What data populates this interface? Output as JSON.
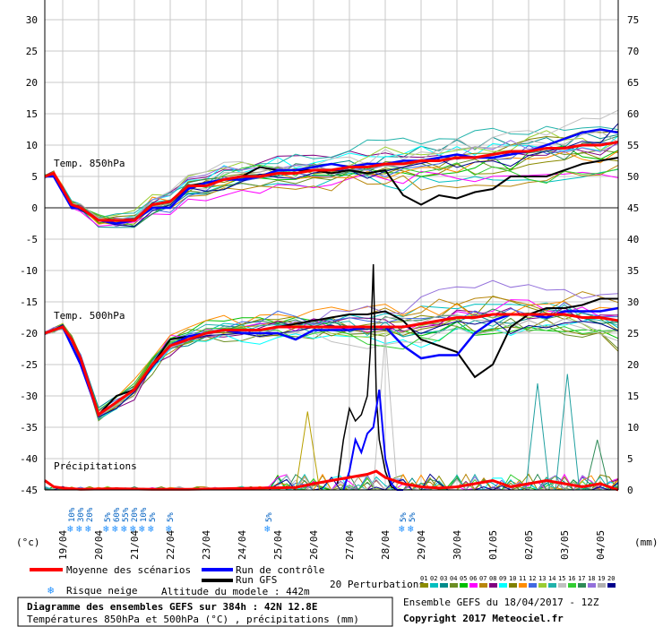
{
  "header": {
    "title_line1": "Diagramme des ensembles GEFS sur 384h : 42N 12.8E",
    "title_line2": "Températures 850hPa et 500hPa (°C) , précipitations (mm)",
    "ensemble_label": "Ensemble GEFS du 18/04/2017 - 12Z",
    "copyright": "Copyright 2017 Meteociel.fr",
    "altitude": "Altitude du modele : 442m"
  },
  "labels": {
    "t850": "Temp. 850hPa",
    "t500": "Temp. 500hPa",
    "precip": "Précipitations",
    "left_unit": "(°c)",
    "right_unit": "(mm)"
  },
  "legend": {
    "mean": "Moyenne des scénarios",
    "control": "Run de contrôle",
    "gfs": "Run GFS",
    "perturb": "20 Perturbations",
    "snow": "Risque neige",
    "perturb_nums": [
      "01",
      "02",
      "03",
      "04",
      "05",
      "06",
      "07",
      "08",
      "09",
      "10",
      "11",
      "12",
      "13",
      "14",
      "15",
      "16",
      "17",
      "18",
      "19",
      "20"
    ],
    "perturb_colors": [
      "#8b8b00",
      "#00bfbf",
      "#008b8b",
      "#6b8e23",
      "#00c000",
      "#ff00ff",
      "#b8860b",
      "#800080",
      "#00ffff",
      "#808000",
      "#ff8c00",
      "#4169e1",
      "#9acd32",
      "#20b2aa",
      "#c0c0c0",
      "#32cd32",
      "#2e8b57",
      "#9370db",
      "#b0b0b0",
      "#00008b"
    ]
  },
  "colors": {
    "mean": "#ff0000",
    "control": "#0000ff",
    "gfs": "#000000",
    "grid": "#c8c8c8",
    "snow": "#2090ff"
  },
  "chart_data": {
    "type": "line",
    "x_dates": [
      "19/04",
      "20/04",
      "21/04",
      "22/04",
      "23/04",
      "24/04",
      "25/04",
      "26/04",
      "27/04",
      "28/04",
      "29/04",
      "30/04",
      "01/05",
      "02/05",
      "03/05",
      "04/05"
    ],
    "x_hours_start": 0,
    "x_hours_end": 384,
    "y_left_ticks": [
      30,
      25,
      20,
      15,
      10,
      5,
      0,
      -5,
      -10,
      -15,
      -20,
      -25,
      -30,
      -35,
      -40,
      -45
    ],
    "y_right_ticks": [
      75,
      70,
      65,
      60,
      55,
      50,
      45,
      40,
      35,
      30,
      25,
      20,
      15,
      10,
      5,
      0
    ],
    "snow_risk": [
      {
        "date_hour": 18,
        "pct": "10%"
      },
      {
        "date_hour": 24,
        "pct": "30%"
      },
      {
        "date_hour": 30,
        "pct": "20%"
      },
      {
        "date_hour": 42,
        "pct": "5%"
      },
      {
        "date_hour": 48,
        "pct": "60%"
      },
      {
        "date_hour": 54,
        "pct": "55%"
      },
      {
        "date_hour": 60,
        "pct": "20%"
      },
      {
        "date_hour": 66,
        "pct": "10%"
      },
      {
        "date_hour": 72,
        "pct": "5%"
      },
      {
        "date_hour": 84,
        "pct": "5%"
      },
      {
        "date_hour": 150,
        "pct": "5%"
      },
      {
        "date_hour": 240,
        "pct": "5%"
      },
      {
        "date_hour": 246,
        "pct": "5%"
      }
    ],
    "t850": {
      "hours": [
        0,
        6,
        12,
        18,
        24,
        36,
        48,
        60,
        72,
        84,
        96,
        108,
        120,
        132,
        144,
        156,
        168,
        180,
        192,
        204,
        216,
        228,
        240,
        252,
        264,
        276,
        288,
        300,
        312,
        324,
        336,
        348,
        360,
        372,
        384
      ],
      "mean": [
        5,
        5.5,
        3,
        0.5,
        0,
        -2,
        -2,
        -2,
        0.5,
        1,
        3.5,
        3.5,
        4.5,
        5,
        5,
        5.5,
        5.5,
        6,
        6,
        6.5,
        6.5,
        7,
        7,
        7.5,
        7.5,
        8,
        8,
        8.5,
        9,
        9,
        9.5,
        9.5,
        10,
        10,
        10.5
      ],
      "control": [
        5,
        5,
        2.5,
        0,
        0,
        -2,
        -2.5,
        -2,
        0,
        0,
        3,
        4,
        4.5,
        4.5,
        5,
        6,
        6,
        6.5,
        7,
        6.5,
        7,
        7,
        7.5,
        7.5,
        8,
        8.5,
        8,
        8,
        8.5,
        9,
        10,
        11,
        12,
        12.5,
        12
      ],
      "gfs": [
        5,
        5.5,
        3,
        0,
        0,
        -2,
        -2,
        -2,
        0.5,
        1,
        3.5,
        4,
        4.5,
        5,
        6.5,
        6,
        6,
        6,
        5.5,
        6,
        5.5,
        6,
        2,
        0.5,
        2,
        1.5,
        2.5,
        3,
        5,
        5,
        5,
        6,
        7,
        7.5,
        8
      ]
    },
    "t500": {
      "hours": [
        0,
        6,
        12,
        18,
        24,
        36,
        48,
        60,
        72,
        84,
        96,
        108,
        120,
        132,
        144,
        156,
        168,
        180,
        192,
        204,
        216,
        228,
        240,
        252,
        264,
        276,
        288,
        300,
        312,
        324,
        336,
        348,
        360,
        372,
        384
      ],
      "mean": [
        -20,
        -19.5,
        -19,
        -21,
        -24,
        -33,
        -31,
        -29,
        -25,
        -22,
        -21,
        -20,
        -19.5,
        -19.5,
        -19.5,
        -19,
        -19,
        -19,
        -19,
        -19,
        -19,
        -19,
        -19,
        -18.5,
        -18,
        -17.5,
        -17.5,
        -17,
        -17,
        -17,
        -17,
        -17,
        -17.5,
        -17.5,
        -18
      ],
      "control": [
        -20,
        -19.5,
        -19,
        -22,
        -25,
        -33,
        -31,
        -29,
        -25,
        -22,
        -20.5,
        -20,
        -19.5,
        -20,
        -20,
        -20,
        -21,
        -19.5,
        -19.5,
        -19.5,
        -19,
        -19,
        -22,
        -24,
        -23.5,
        -23.5,
        -20,
        -18,
        -17,
        -17,
        -17.5,
        -16.5,
        -16.5,
        -16.5,
        -16
      ],
      "gfs": [
        -20,
        -19.5,
        -19,
        -21,
        -24,
        -33,
        -30,
        -29,
        -25,
        -21,
        -20.5,
        -20,
        -19.5,
        -19.5,
        -19.5,
        -19,
        -18.5,
        -18,
        -17.5,
        -17,
        -17,
        -16.5,
        -18,
        -21,
        -22,
        -23,
        -27,
        -25,
        -19,
        -17,
        -16,
        -16,
        -15.5,
        -14.5,
        -14.5
      ]
    },
    "precip_mean": {
      "hours": [
        0,
        6,
        12,
        18,
        24,
        48,
        72,
        96,
        120,
        144,
        168,
        180,
        192,
        204,
        216,
        222,
        228,
        240,
        252,
        264,
        276,
        288,
        300,
        312,
        324,
        336,
        348,
        360,
        372,
        384
      ],
      "values": [
        1.5,
        0.5,
        0.3,
        0.2,
        0.1,
        0.2,
        0.1,
        0.1,
        0.2,
        0.3,
        0.4,
        1,
        1.5,
        2,
        2.5,
        3,
        2,
        1,
        0.5,
        0.3,
        0.5,
        1,
        1.5,
        0.5,
        1,
        1.5,
        1,
        0.5,
        1,
        0
      ]
    },
    "precip_control_peak": {
      "hours": [
        200,
        204,
        208,
        212,
        216,
        220,
        224,
        228,
        232,
        236,
        240
      ],
      "values": [
        0,
        3,
        8,
        6,
        9,
        10,
        16,
        5,
        1,
        0,
        0
      ]
    },
    "precip_gfs_peak": {
      "hours": [
        196,
        200,
        204,
        208,
        212,
        216,
        218,
        220,
        222,
        224,
        228,
        232,
        236
      ],
      "values": [
        1,
        8,
        13,
        11,
        12,
        15,
        22,
        36,
        15,
        8,
        3,
        0.5,
        0
      ]
    },
    "precip_spikes": [
      {
        "hour": 176,
        "value": 12.5,
        "color": "#b8a000"
      },
      {
        "hour": 330,
        "value": 17,
        "color": "#20a0a0"
      },
      {
        "hour": 350,
        "value": 18.5,
        "color": "#20a0a0"
      },
      {
        "hour": 370,
        "value": 8,
        "color": "#2e8b57"
      },
      {
        "hour": 228,
        "value": 25,
        "color": "#c0c0c0"
      }
    ]
  }
}
